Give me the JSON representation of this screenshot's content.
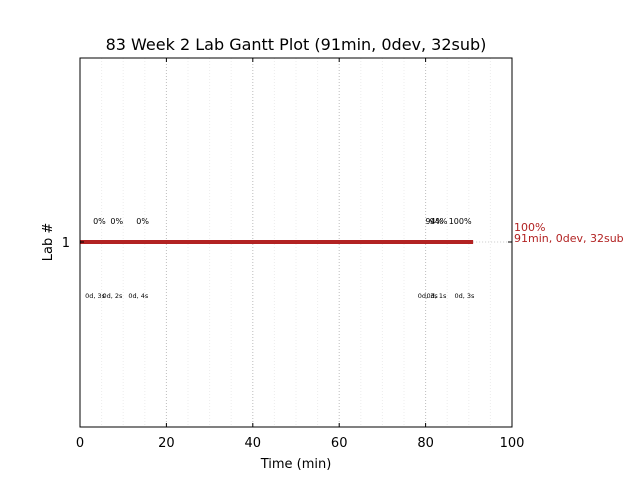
{
  "chart_data": {
    "type": "gantt",
    "title": "83 Week 2 Lab Gantt Plot (91min, 0dev, 32sub)",
    "xlabel": "Time (min)",
    "ylabel": "Lab #",
    "xlim": [
      0,
      100
    ],
    "x_ticks": [
      0,
      20,
      40,
      60,
      80,
      100
    ],
    "x_tick_labels": [
      "0",
      "20",
      "40",
      "60",
      "80",
      "100"
    ],
    "minor_x_ticks": [
      5,
      10,
      15,
      25,
      30,
      35,
      45,
      50,
      55,
      65,
      70,
      75,
      85,
      90,
      95
    ],
    "y_categories": [
      "1"
    ],
    "grid": true,
    "bar_color": "#b22222",
    "bars": [
      {
        "lab": "1",
        "start": 0,
        "end": 91
      }
    ],
    "top_annotations": [
      {
        "x": 4.5,
        "text": "0%"
      },
      {
        "x": 8.5,
        "text": "0%"
      },
      {
        "x": 14.5,
        "text": "0%"
      },
      {
        "x": 82,
        "text": "94%"
      },
      {
        "x": 83,
        "text": "94%"
      },
      {
        "x": 88,
        "text": "100%"
      }
    ],
    "bottom_annotations": [
      {
        "x": 3.5,
        "text": "0d, 3s"
      },
      {
        "x": 7.5,
        "text": "0d, 2s"
      },
      {
        "x": 13.5,
        "text": "0d, 4s"
      },
      {
        "x": 80.5,
        "text": "0d, 3s"
      },
      {
        "x": 82.5,
        "text": "0d, 1s"
      },
      {
        "x": 89,
        "text": "0d, 3s"
      }
    ],
    "summary_lines": [
      "100%",
      "91min, 0dev, 32sub"
    ]
  }
}
